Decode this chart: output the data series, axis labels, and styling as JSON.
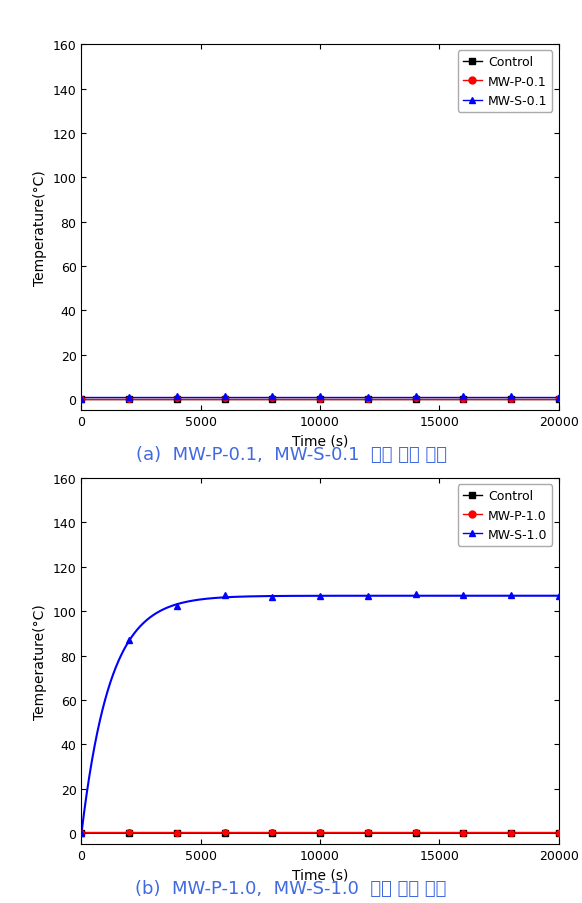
{
  "chart_a": {
    "title_ascii": "(a) MW-P-0.1, MW-S-0.1 ",
    "title_korean": "발열 실험 결과",
    "legend_labels": [
      "Control",
      "MW-P-0.1",
      "MW-S-0.1"
    ],
    "legend_colors": [
      "#000000",
      "#ff0000",
      "#0000ff"
    ],
    "legend_markers": [
      "s",
      "o",
      "^"
    ],
    "ylabel": "Temperature(°C)",
    "xlabel": "Time (s)",
    "xlim": [
      0,
      20000
    ],
    "ylim": [
      -5,
      160
    ],
    "yticks": [
      0,
      20,
      40,
      60,
      80,
      100,
      120,
      140,
      160
    ],
    "xticks": [
      0,
      5000,
      10000,
      15000,
      20000
    ],
    "control_y": 0.0,
    "mwp_base": 0.3,
    "mws_base": 1.2
  },
  "chart_b": {
    "title_ascii": "(b) MW-P-1.0, MW-S-1.0 ",
    "title_korean": "발열 실험 결과",
    "legend_labels": [
      "Control",
      "MW-P-1.0",
      "MW-S-1.0"
    ],
    "legend_colors": [
      "#000000",
      "#ff0000",
      "#0000ff"
    ],
    "legend_markers": [
      "s",
      "o",
      "^"
    ],
    "ylabel": "Temperature(°C)",
    "xlabel": "Time (s)",
    "xlim": [
      0,
      20000
    ],
    "ylim": [
      -5,
      160
    ],
    "yticks": [
      0,
      20,
      40,
      60,
      80,
      100,
      120,
      140,
      160
    ],
    "xticks": [
      0,
      5000,
      10000,
      15000,
      20000
    ],
    "mws_saturation": 107,
    "mws_rise_tau": 1200,
    "mwp_base": 0.3
  },
  "title_color": "#4169E1",
  "title_fontsize": 13,
  "axis_label_fontsize": 10,
  "tick_fontsize": 9,
  "legend_fontsize": 9,
  "background_color": "#ffffff"
}
